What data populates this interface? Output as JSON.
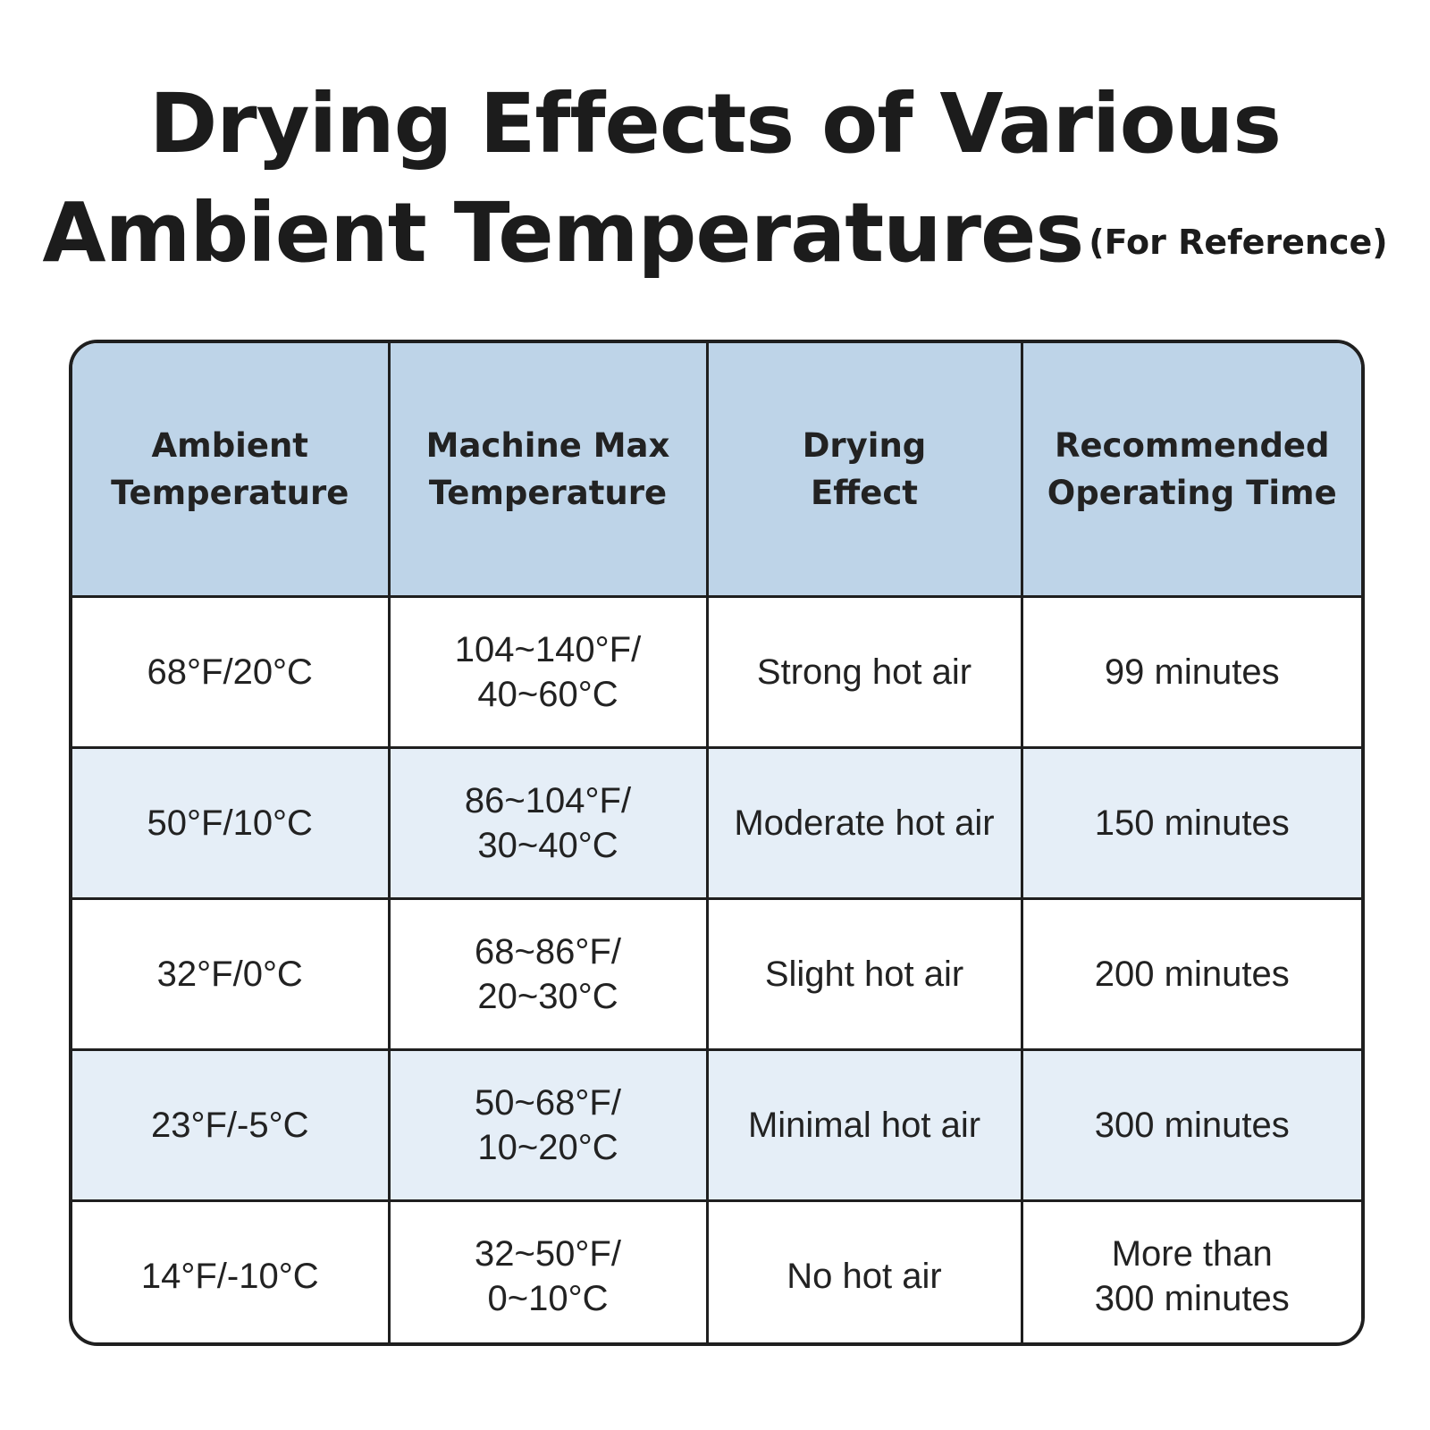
{
  "title": {
    "line1": "Drying Effects of Various",
    "line2": "Ambient Temperatures",
    "subtitle": "(For Reference)"
  },
  "table": {
    "headers": [
      "Ambient\nTemperature",
      "Machine Max\nTemperature",
      "Drying\nEffect",
      "Recommended\nOperating Time"
    ],
    "rows": [
      [
        "68°F/20°C",
        "104~140°F/\n40~60°C",
        "Strong hot air",
        "99 minutes"
      ],
      [
        "50°F/10°C",
        "86~104°F/\n30~40°C",
        "Moderate hot air",
        "150 minutes"
      ],
      [
        "32°F/0°C",
        "68~86°F/\n20~30°C",
        "Slight hot air",
        "200 minutes"
      ],
      [
        "23°F/-5°C",
        "50~68°F/\n10~20°C",
        "Minimal hot air",
        "300 minutes"
      ],
      [
        "14°F/-10°C",
        "32~50°F/\n0~10°C",
        "No hot air",
        "More than\n300 minutes"
      ]
    ]
  },
  "colors": {
    "header_bg": "#bed4e8",
    "stripe_bg": "#e5eef7",
    "border": "#1f1f1f"
  }
}
